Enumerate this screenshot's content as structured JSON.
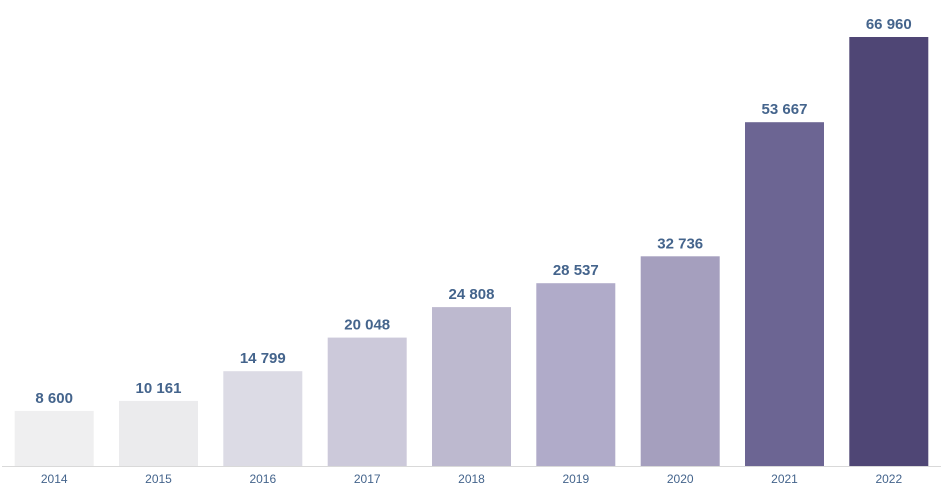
{
  "chart_data": {
    "type": "bar",
    "categories": [
      "2014",
      "2015",
      "2016",
      "2017",
      "2018",
      "2019",
      "2020",
      "2021",
      "2022"
    ],
    "values": [
      8600,
      10161,
      14799,
      20048,
      24808,
      28537,
      32736,
      53667,
      66960
    ],
    "data_labels": [
      "8 600",
      "10 161",
      "14 799",
      "20 048",
      "24 808",
      "28 537",
      "32 736",
      "53 667",
      "66 960"
    ],
    "bar_colors": [
      "#efeff0",
      "#ebebed",
      "#dcdbe5",
      "#ccc9da",
      "#bdb9cf",
      "#b0abc9",
      "#a59fbe",
      "#6c6593",
      "#4f4675"
    ],
    "label_color": "#44648c",
    "axis_color": "#d9d9d9",
    "ylim": [
      0,
      66960
    ],
    "grid": false,
    "legend": "none",
    "title": "",
    "xlabel": "",
    "ylabel": ""
  }
}
